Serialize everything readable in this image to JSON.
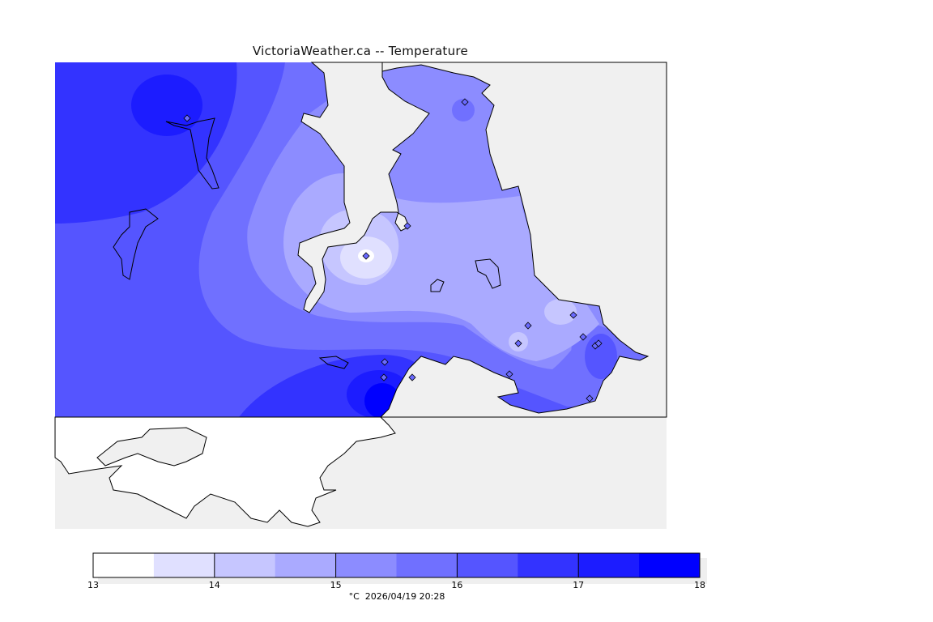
{
  "title": "VictoriaWeather.ca -- Temperature",
  "colorbar": {
    "tick_labels": [
      "13",
      "14",
      "15",
      "16",
      "17",
      "18"
    ],
    "levels": [
      13,
      13.5,
      14,
      14.5,
      15,
      15.5,
      16,
      16.5,
      17,
      17.5,
      18
    ],
    "colors": [
      "#ffffff",
      "#e0e0ff",
      "#c6c6ff",
      "#aaaaff",
      "#8c8cff",
      "#7070ff",
      "#5555ff",
      "#3333ff",
      "#1c1cff",
      "#0000ff"
    ]
  },
  "footer": {
    "units": "°C",
    "timestamp": "2026/04/19 20:28"
  },
  "map": {
    "land_color": "#f0f0f0",
    "water_outside_color": "#ffffff",
    "station_count": 15
  }
}
